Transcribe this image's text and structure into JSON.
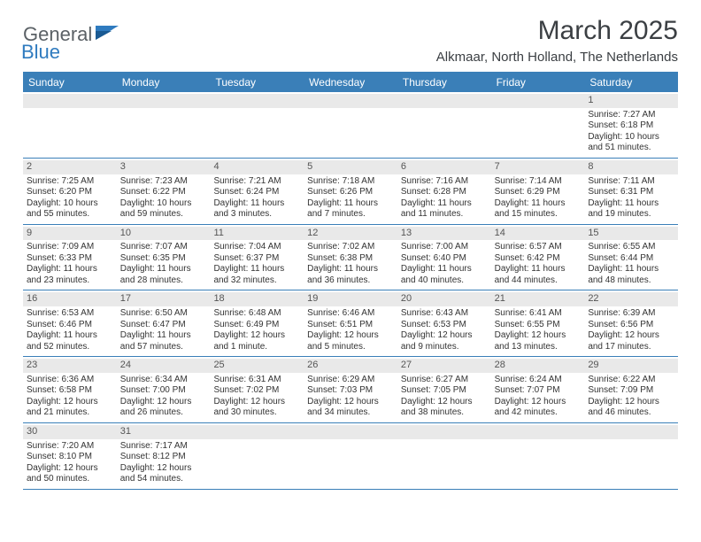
{
  "header": {
    "logo_general": "General",
    "logo_blue": "Blue",
    "month_title": "March 2025",
    "location": "Alkmaar, North Holland, The Netherlands"
  },
  "colors": {
    "header_bg": "#3a7fb8",
    "header_text": "#ffffff",
    "daynum_bg": "#e9e9e9",
    "border": "#3a7fb8"
  },
  "day_labels": [
    "Sunday",
    "Monday",
    "Tuesday",
    "Wednesday",
    "Thursday",
    "Friday",
    "Saturday"
  ],
  "weeks": [
    [
      {
        "num": "",
        "sunrise": "",
        "sunset": "",
        "daylight1": "",
        "daylight2": ""
      },
      {
        "num": "",
        "sunrise": "",
        "sunset": "",
        "daylight1": "",
        "daylight2": ""
      },
      {
        "num": "",
        "sunrise": "",
        "sunset": "",
        "daylight1": "",
        "daylight2": ""
      },
      {
        "num": "",
        "sunrise": "",
        "sunset": "",
        "daylight1": "",
        "daylight2": ""
      },
      {
        "num": "",
        "sunrise": "",
        "sunset": "",
        "daylight1": "",
        "daylight2": ""
      },
      {
        "num": "",
        "sunrise": "",
        "sunset": "",
        "daylight1": "",
        "daylight2": ""
      },
      {
        "num": "1",
        "sunrise": "Sunrise: 7:27 AM",
        "sunset": "Sunset: 6:18 PM",
        "daylight1": "Daylight: 10 hours",
        "daylight2": "and 51 minutes."
      }
    ],
    [
      {
        "num": "2",
        "sunrise": "Sunrise: 7:25 AM",
        "sunset": "Sunset: 6:20 PM",
        "daylight1": "Daylight: 10 hours",
        "daylight2": "and 55 minutes."
      },
      {
        "num": "3",
        "sunrise": "Sunrise: 7:23 AM",
        "sunset": "Sunset: 6:22 PM",
        "daylight1": "Daylight: 10 hours",
        "daylight2": "and 59 minutes."
      },
      {
        "num": "4",
        "sunrise": "Sunrise: 7:21 AM",
        "sunset": "Sunset: 6:24 PM",
        "daylight1": "Daylight: 11 hours",
        "daylight2": "and 3 minutes."
      },
      {
        "num": "5",
        "sunrise": "Sunrise: 7:18 AM",
        "sunset": "Sunset: 6:26 PM",
        "daylight1": "Daylight: 11 hours",
        "daylight2": "and 7 minutes."
      },
      {
        "num": "6",
        "sunrise": "Sunrise: 7:16 AM",
        "sunset": "Sunset: 6:28 PM",
        "daylight1": "Daylight: 11 hours",
        "daylight2": "and 11 minutes."
      },
      {
        "num": "7",
        "sunrise": "Sunrise: 7:14 AM",
        "sunset": "Sunset: 6:29 PM",
        "daylight1": "Daylight: 11 hours",
        "daylight2": "and 15 minutes."
      },
      {
        "num": "8",
        "sunrise": "Sunrise: 7:11 AM",
        "sunset": "Sunset: 6:31 PM",
        "daylight1": "Daylight: 11 hours",
        "daylight2": "and 19 minutes."
      }
    ],
    [
      {
        "num": "9",
        "sunrise": "Sunrise: 7:09 AM",
        "sunset": "Sunset: 6:33 PM",
        "daylight1": "Daylight: 11 hours",
        "daylight2": "and 23 minutes."
      },
      {
        "num": "10",
        "sunrise": "Sunrise: 7:07 AM",
        "sunset": "Sunset: 6:35 PM",
        "daylight1": "Daylight: 11 hours",
        "daylight2": "and 28 minutes."
      },
      {
        "num": "11",
        "sunrise": "Sunrise: 7:04 AM",
        "sunset": "Sunset: 6:37 PM",
        "daylight1": "Daylight: 11 hours",
        "daylight2": "and 32 minutes."
      },
      {
        "num": "12",
        "sunrise": "Sunrise: 7:02 AM",
        "sunset": "Sunset: 6:38 PM",
        "daylight1": "Daylight: 11 hours",
        "daylight2": "and 36 minutes."
      },
      {
        "num": "13",
        "sunrise": "Sunrise: 7:00 AM",
        "sunset": "Sunset: 6:40 PM",
        "daylight1": "Daylight: 11 hours",
        "daylight2": "and 40 minutes."
      },
      {
        "num": "14",
        "sunrise": "Sunrise: 6:57 AM",
        "sunset": "Sunset: 6:42 PM",
        "daylight1": "Daylight: 11 hours",
        "daylight2": "and 44 minutes."
      },
      {
        "num": "15",
        "sunrise": "Sunrise: 6:55 AM",
        "sunset": "Sunset: 6:44 PM",
        "daylight1": "Daylight: 11 hours",
        "daylight2": "and 48 minutes."
      }
    ],
    [
      {
        "num": "16",
        "sunrise": "Sunrise: 6:53 AM",
        "sunset": "Sunset: 6:46 PM",
        "daylight1": "Daylight: 11 hours",
        "daylight2": "and 52 minutes."
      },
      {
        "num": "17",
        "sunrise": "Sunrise: 6:50 AM",
        "sunset": "Sunset: 6:47 PM",
        "daylight1": "Daylight: 11 hours",
        "daylight2": "and 57 minutes."
      },
      {
        "num": "18",
        "sunrise": "Sunrise: 6:48 AM",
        "sunset": "Sunset: 6:49 PM",
        "daylight1": "Daylight: 12 hours",
        "daylight2": "and 1 minute."
      },
      {
        "num": "19",
        "sunrise": "Sunrise: 6:46 AM",
        "sunset": "Sunset: 6:51 PM",
        "daylight1": "Daylight: 12 hours",
        "daylight2": "and 5 minutes."
      },
      {
        "num": "20",
        "sunrise": "Sunrise: 6:43 AM",
        "sunset": "Sunset: 6:53 PM",
        "daylight1": "Daylight: 12 hours",
        "daylight2": "and 9 minutes."
      },
      {
        "num": "21",
        "sunrise": "Sunrise: 6:41 AM",
        "sunset": "Sunset: 6:55 PM",
        "daylight1": "Daylight: 12 hours",
        "daylight2": "and 13 minutes."
      },
      {
        "num": "22",
        "sunrise": "Sunrise: 6:39 AM",
        "sunset": "Sunset: 6:56 PM",
        "daylight1": "Daylight: 12 hours",
        "daylight2": "and 17 minutes."
      }
    ],
    [
      {
        "num": "23",
        "sunrise": "Sunrise: 6:36 AM",
        "sunset": "Sunset: 6:58 PM",
        "daylight1": "Daylight: 12 hours",
        "daylight2": "and 21 minutes."
      },
      {
        "num": "24",
        "sunrise": "Sunrise: 6:34 AM",
        "sunset": "Sunset: 7:00 PM",
        "daylight1": "Daylight: 12 hours",
        "daylight2": "and 26 minutes."
      },
      {
        "num": "25",
        "sunrise": "Sunrise: 6:31 AM",
        "sunset": "Sunset: 7:02 PM",
        "daylight1": "Daylight: 12 hours",
        "daylight2": "and 30 minutes."
      },
      {
        "num": "26",
        "sunrise": "Sunrise: 6:29 AM",
        "sunset": "Sunset: 7:03 PM",
        "daylight1": "Daylight: 12 hours",
        "daylight2": "and 34 minutes."
      },
      {
        "num": "27",
        "sunrise": "Sunrise: 6:27 AM",
        "sunset": "Sunset: 7:05 PM",
        "daylight1": "Daylight: 12 hours",
        "daylight2": "and 38 minutes."
      },
      {
        "num": "28",
        "sunrise": "Sunrise: 6:24 AM",
        "sunset": "Sunset: 7:07 PM",
        "daylight1": "Daylight: 12 hours",
        "daylight2": "and 42 minutes."
      },
      {
        "num": "29",
        "sunrise": "Sunrise: 6:22 AM",
        "sunset": "Sunset: 7:09 PM",
        "daylight1": "Daylight: 12 hours",
        "daylight2": "and 46 minutes."
      }
    ],
    [
      {
        "num": "30",
        "sunrise": "Sunrise: 7:20 AM",
        "sunset": "Sunset: 8:10 PM",
        "daylight1": "Daylight: 12 hours",
        "daylight2": "and 50 minutes."
      },
      {
        "num": "31",
        "sunrise": "Sunrise: 7:17 AM",
        "sunset": "Sunset: 8:12 PM",
        "daylight1": "Daylight: 12 hours",
        "daylight2": "and 54 minutes."
      },
      {
        "num": "",
        "sunrise": "",
        "sunset": "",
        "daylight1": "",
        "daylight2": ""
      },
      {
        "num": "",
        "sunrise": "",
        "sunset": "",
        "daylight1": "",
        "daylight2": ""
      },
      {
        "num": "",
        "sunrise": "",
        "sunset": "",
        "daylight1": "",
        "daylight2": ""
      },
      {
        "num": "",
        "sunrise": "",
        "sunset": "",
        "daylight1": "",
        "daylight2": ""
      },
      {
        "num": "",
        "sunrise": "",
        "sunset": "",
        "daylight1": "",
        "daylight2": ""
      }
    ]
  ]
}
